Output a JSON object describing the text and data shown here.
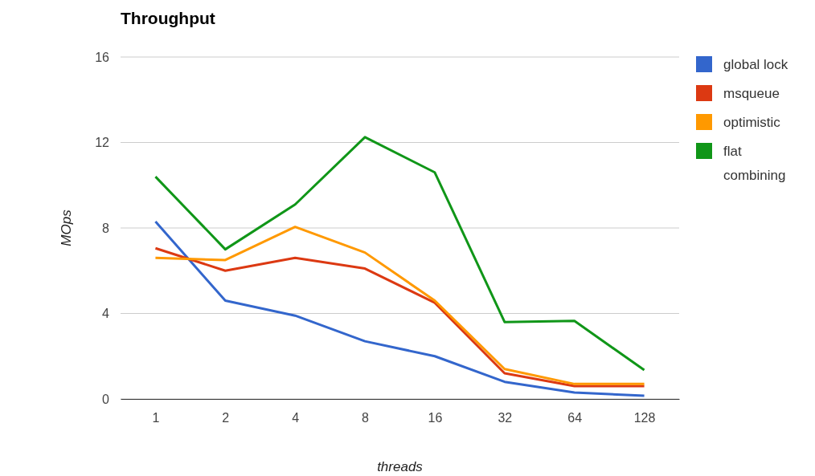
{
  "chart_data": {
    "type": "line",
    "title": "Throughput",
    "xlabel": "threads",
    "ylabel": "MOps",
    "categories": [
      "1",
      "2",
      "4",
      "8",
      "16",
      "32",
      "64",
      "128"
    ],
    "ylim": [
      0,
      16
    ],
    "yticks": [
      0,
      4,
      8,
      12,
      16
    ],
    "grid": "y",
    "legend": "right",
    "line_style": "solid",
    "marker": "none",
    "series": [
      {
        "name": "global lock",
        "color": "#3366cc",
        "values": [
          8.3,
          4.6,
          3.9,
          2.7,
          2.0,
          0.8,
          0.3,
          0.15
        ]
      },
      {
        "name": "msqueue",
        "color": "#dc3912",
        "values": [
          7.05,
          6.0,
          6.6,
          6.1,
          4.5,
          1.2,
          0.6,
          0.6
        ]
      },
      {
        "name": "optimistic",
        "color": "#ff9900",
        "values": [
          6.6,
          6.5,
          8.05,
          6.85,
          4.6,
          1.4,
          0.7,
          0.7
        ]
      },
      {
        "name": "flat combining",
        "color": "#109618",
        "values": [
          10.4,
          7.0,
          9.1,
          12.25,
          10.6,
          3.6,
          3.65,
          1.35
        ]
      }
    ]
  }
}
